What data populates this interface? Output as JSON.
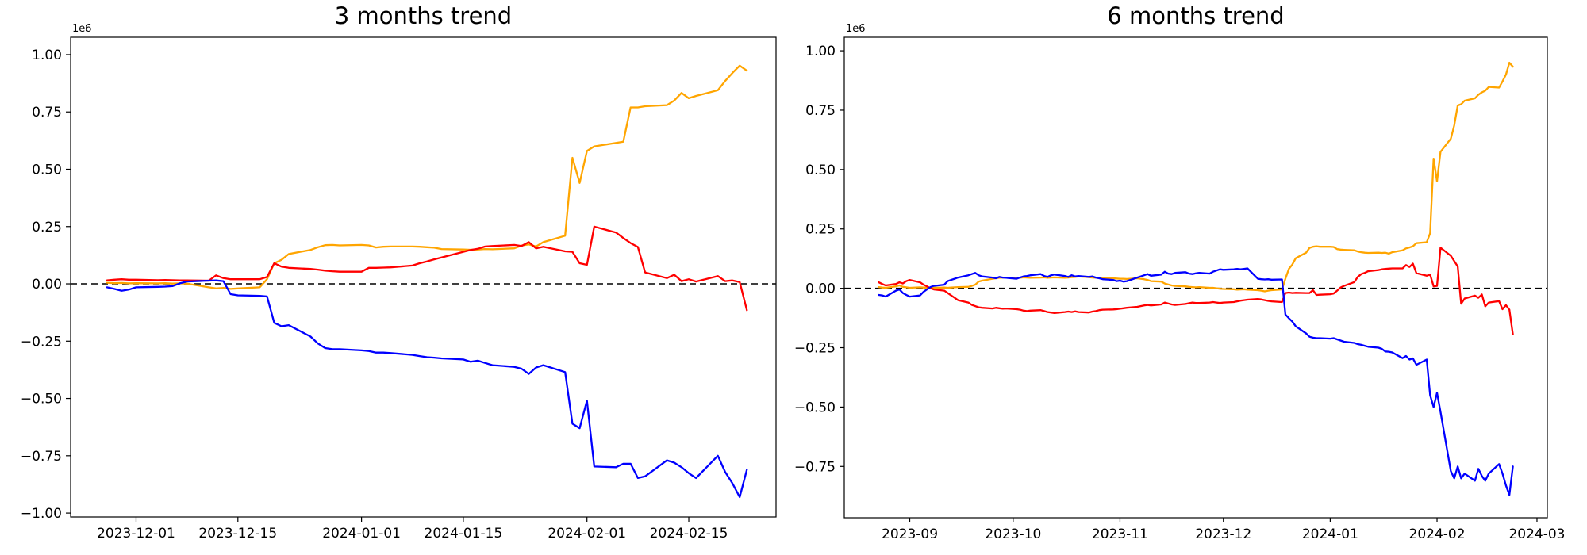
{
  "figure": {
    "background": "#ffffff"
  },
  "chart_data": [
    {
      "type": "line",
      "title": "3 months trend",
      "xlabel": "",
      "ylabel": "",
      "y_unit_offset_label": "1e6",
      "grid": false,
      "legend": "none",
      "zero_line": {
        "show": true,
        "color": "#000000",
        "style": "dashed"
      },
      "xlim": [
        "2023-11-22",
        "2024-02-27"
      ],
      "ylim": [
        -1.017,
        1.076
      ],
      "y_ticks": [
        {
          "value": 1.0,
          "label": "1.00"
        },
        {
          "value": 0.75,
          "label": "0.75"
        },
        {
          "value": 0.5,
          "label": "0.50"
        },
        {
          "value": 0.25,
          "label": "0.25"
        },
        {
          "value": 0.0,
          "label": "0.00"
        },
        {
          "value": -0.25,
          "label": "−0.25"
        },
        {
          "value": -0.5,
          "label": "−0.50"
        },
        {
          "value": -0.75,
          "label": "−0.75"
        },
        {
          "value": -1.0,
          "label": "−1.00"
        }
      ],
      "x_ticks": [
        {
          "date": "2023-12-01",
          "label": "2023-12-01"
        },
        {
          "date": "2023-12-15",
          "label": "2023-12-15"
        },
        {
          "date": "2024-01-01",
          "label": "2024-01-01"
        },
        {
          "date": "2024-01-15",
          "label": "2024-01-15"
        },
        {
          "date": "2024-02-01",
          "label": "2024-02-01"
        },
        {
          "date": "2024-02-15",
          "label": "2024-02-15"
        }
      ],
      "x_dates": [
        "2023-11-27",
        "2023-11-28",
        "2023-11-29",
        "2023-11-30",
        "2023-12-01",
        "2023-12-04",
        "2023-12-05",
        "2023-12-06",
        "2023-12-07",
        "2023-12-08",
        "2023-12-11",
        "2023-12-12",
        "2023-12-13",
        "2023-12-14",
        "2023-12-15",
        "2023-12-18",
        "2023-12-19",
        "2023-12-20",
        "2023-12-21",
        "2023-12-22",
        "2023-12-25",
        "2023-12-26",
        "2023-12-27",
        "2023-12-28",
        "2023-12-29",
        "2024-01-01",
        "2024-01-02",
        "2024-01-03",
        "2024-01-04",
        "2024-01-05",
        "2024-01-08",
        "2024-01-09",
        "2024-01-10",
        "2024-01-11",
        "2024-01-12",
        "2024-01-15",
        "2024-01-16",
        "2024-01-17",
        "2024-01-18",
        "2024-01-19",
        "2024-01-22",
        "2024-01-23",
        "2024-01-24",
        "2024-01-25",
        "2024-01-26",
        "2024-01-29",
        "2024-01-30",
        "2024-01-31",
        "2024-02-01",
        "2024-02-02",
        "2024-02-05",
        "2024-02-06",
        "2024-02-07",
        "2024-02-08",
        "2024-02-09",
        "2024-02-12",
        "2024-02-13",
        "2024-02-14",
        "2024-02-15",
        "2024-02-16",
        "2024-02-19",
        "2024-02-20",
        "2024-02-21",
        "2024-02-22",
        "2024-02-23"
      ],
      "series": [
        {
          "name": "orange",
          "color": "#ffa500",
          "y": [
            0.005,
            0.003,
            0.004,
            0.002,
            0.003,
            0.002,
            0.003,
            0.001,
            0.002,
            0.001,
            -0.015,
            -0.02,
            -0.018,
            -0.022,
            -0.02,
            -0.015,
            0.02,
            0.09,
            0.105,
            0.13,
            0.148,
            0.16,
            0.169,
            0.17,
            0.168,
            0.17,
            0.168,
            0.159,
            0.162,
            0.163,
            0.163,
            0.162,
            0.16,
            0.158,
            0.152,
            0.15,
            0.149,
            0.15,
            0.152,
            0.151,
            0.155,
            0.167,
            0.172,
            0.163,
            0.182,
            0.21,
            0.55,
            0.44,
            0.58,
            0.6,
            0.615,
            0.62,
            0.77,
            0.77,
            0.775,
            0.78,
            0.8,
            0.833,
            0.81,
            0.82,
            0.845,
            0.885,
            0.92,
            0.952,
            0.93
          ]
        },
        {
          "name": "red",
          "color": "#ff0000",
          "y": [
            0.015,
            0.018,
            0.02,
            0.018,
            0.018,
            0.016,
            0.017,
            0.016,
            0.015,
            0.015,
            0.014,
            0.037,
            0.025,
            0.02,
            0.02,
            0.02,
            0.03,
            0.09,
            0.075,
            0.07,
            0.065,
            0.062,
            0.058,
            0.055,
            0.053,
            0.053,
            0.07,
            0.07,
            0.071,
            0.072,
            0.08,
            0.09,
            0.098,
            0.107,
            0.115,
            0.14,
            0.148,
            0.153,
            0.163,
            0.165,
            0.17,
            0.165,
            0.182,
            0.155,
            0.162,
            0.142,
            0.14,
            0.09,
            0.083,
            0.25,
            0.224,
            0.2,
            0.178,
            0.161,
            0.05,
            0.025,
            0.04,
            0.012,
            0.02,
            0.01,
            0.034,
            0.012,
            0.015,
            0.008,
            -0.115
          ]
        },
        {
          "name": "blue",
          "color": "#0000ff",
          "y": [
            -0.015,
            -0.022,
            -0.03,
            -0.025,
            -0.015,
            -0.013,
            -0.012,
            -0.01,
            0.002,
            0.01,
            0.014,
            0.015,
            0.012,
            -0.045,
            -0.05,
            -0.052,
            -0.055,
            -0.17,
            -0.185,
            -0.18,
            -0.23,
            -0.26,
            -0.28,
            -0.285,
            -0.285,
            -0.29,
            -0.293,
            -0.3,
            -0.3,
            -0.302,
            -0.31,
            -0.315,
            -0.32,
            -0.322,
            -0.325,
            -0.33,
            -0.34,
            -0.335,
            -0.345,
            -0.355,
            -0.362,
            -0.37,
            -0.393,
            -0.365,
            -0.355,
            -0.385,
            -0.61,
            -0.63,
            -0.51,
            -0.797,
            -0.8,
            -0.785,
            -0.785,
            -0.847,
            -0.84,
            -0.77,
            -0.78,
            -0.8,
            -0.826,
            -0.847,
            -0.75,
            -0.82,
            -0.87,
            -0.93,
            -0.81
          ]
        }
      ]
    },
    {
      "type": "line",
      "title": "6 months trend",
      "xlabel": "",
      "ylabel": "",
      "y_unit_offset_label": "1e6",
      "grid": false,
      "legend": "none",
      "zero_line": {
        "show": true,
        "color": "#000000",
        "style": "dashed"
      },
      "xlim": [
        "2023-08-13",
        "2024-03-04"
      ],
      "ylim": [
        -0.966,
        1.057
      ],
      "y_ticks": [
        {
          "value": 1.0,
          "label": "1.00"
        },
        {
          "value": 0.75,
          "label": "0.75"
        },
        {
          "value": 0.5,
          "label": "0.50"
        },
        {
          "value": 0.25,
          "label": "0.25"
        },
        {
          "value": 0.0,
          "label": "0.00"
        },
        {
          "value": -0.25,
          "label": "−0.25"
        },
        {
          "value": -0.5,
          "label": "−0.50"
        },
        {
          "value": -0.75,
          "label": "−0.75"
        }
      ],
      "x_ticks": [
        {
          "date": "2023-09-01",
          "label": "2023-09"
        },
        {
          "date": "2023-10-01",
          "label": "2023-10"
        },
        {
          "date": "2023-11-01",
          "label": "2023-11"
        },
        {
          "date": "2023-12-01",
          "label": "2023-12"
        },
        {
          "date": "2024-01-01",
          "label": "2024-01"
        },
        {
          "date": "2024-02-01",
          "label": "2024-02"
        },
        {
          "date": "2024-03-01",
          "label": "2024-03"
        }
      ],
      "x_dates": [
        "2023-08-23",
        "2023-08-24",
        "2023-08-25",
        "2023-08-28",
        "2023-08-29",
        "2023-08-30",
        "2023-08-31",
        "2023-09-01",
        "2023-09-04",
        "2023-09-05",
        "2023-09-06",
        "2023-09-07",
        "2023-09-08",
        "2023-09-11",
        "2023-09-12",
        "2023-09-13",
        "2023-09-14",
        "2023-09-15",
        "2023-09-18",
        "2023-09-19",
        "2023-09-20",
        "2023-09-21",
        "2023-09-22",
        "2023-09-25",
        "2023-09-26",
        "2023-09-27",
        "2023-09-28",
        "2023-09-29",
        "2023-10-02",
        "2023-10-03",
        "2023-10-04",
        "2023-10-05",
        "2023-10-06",
        "2023-10-09",
        "2023-10-10",
        "2023-10-11",
        "2023-10-12",
        "2023-10-13",
        "2023-10-16",
        "2023-10-17",
        "2023-10-18",
        "2023-10-19",
        "2023-10-20",
        "2023-10-23",
        "2023-10-24",
        "2023-10-25",
        "2023-10-26",
        "2023-10-27",
        "2023-10-30",
        "2023-10-31",
        "2023-11-01",
        "2023-11-02",
        "2023-11-03",
        "2023-11-06",
        "2023-11-07",
        "2023-11-08",
        "2023-11-09",
        "2023-11-10",
        "2023-11-13",
        "2023-11-14",
        "2023-11-15",
        "2023-11-16",
        "2023-11-17",
        "2023-11-20",
        "2023-11-21",
        "2023-11-22",
        "2023-11-23",
        "2023-11-24",
        "2023-11-27",
        "2023-11-28",
        "2023-11-29",
        "2023-11-30",
        "2023-12-01",
        "2023-12-04",
        "2023-12-05",
        "2023-12-06",
        "2023-12-07",
        "2023-12-08",
        "2023-12-11",
        "2023-12-12",
        "2023-12-13",
        "2023-12-14",
        "2023-12-15",
        "2023-12-18",
        "2023-12-19",
        "2023-12-20",
        "2023-12-21",
        "2023-12-22",
        "2023-12-25",
        "2023-12-26",
        "2023-12-27",
        "2023-12-28",
        "2023-12-29",
        "2024-01-01",
        "2024-01-02",
        "2024-01-03",
        "2024-01-04",
        "2024-01-05",
        "2024-01-08",
        "2024-01-09",
        "2024-01-10",
        "2024-01-11",
        "2024-01-12",
        "2024-01-15",
        "2024-01-16",
        "2024-01-17",
        "2024-01-18",
        "2024-01-19",
        "2024-01-22",
        "2024-01-23",
        "2024-01-24",
        "2024-01-25",
        "2024-01-26",
        "2024-01-29",
        "2024-01-30",
        "2024-01-31",
        "2024-02-01",
        "2024-02-02",
        "2024-02-05",
        "2024-02-06",
        "2024-02-07",
        "2024-02-08",
        "2024-02-09",
        "2024-02-12",
        "2024-02-13",
        "2024-02-14",
        "2024-02-15",
        "2024-02-16",
        "2024-02-19",
        "2024-02-20",
        "2024-02-21",
        "2024-02-22",
        "2024-02-23"
      ],
      "series": [
        {
          "name": "orange",
          "color": "#ffa500",
          "y": [
            0.005,
            0.003,
            0.002,
            0.008,
            0.012,
            0.006,
            0.004,
            0.002,
            0.004,
            0.003,
            0.002,
            0.001,
            0.002,
            0.003,
            0.002,
            0.003,
            0.004,
            0.005,
            0.006,
            0.01,
            0.015,
            0.028,
            0.032,
            0.04,
            0.042,
            0.044,
            0.045,
            0.044,
            0.045,
            0.044,
            0.046,
            0.045,
            0.044,
            0.045,
            0.046,
            0.044,
            0.045,
            0.046,
            0.044,
            0.045,
            0.047,
            0.048,
            0.05,
            0.047,
            0.045,
            0.044,
            0.043,
            0.042,
            0.042,
            0.041,
            0.04,
            0.04,
            0.039,
            0.042,
            0.04,
            0.038,
            0.035,
            0.03,
            0.028,
            0.02,
            0.016,
            0.012,
            0.01,
            0.008,
            0.006,
            0.005,
            0.004,
            0.005,
            0.002,
            0.002,
            0.0,
            -0.002,
            -0.003,
            -0.004,
            -0.006,
            -0.005,
            -0.004,
            -0.006,
            -0.008,
            -0.01,
            -0.013,
            -0.01,
            -0.008,
            -0.005,
            0.04,
            0.082,
            0.1,
            0.127,
            0.15,
            0.17,
            0.175,
            0.177,
            0.175,
            0.175,
            0.174,
            0.165,
            0.163,
            0.162,
            0.16,
            0.155,
            0.152,
            0.15,
            0.149,
            0.15,
            0.149,
            0.15,
            0.146,
            0.152,
            0.16,
            0.168,
            0.172,
            0.177,
            0.19,
            0.194,
            0.232,
            0.546,
            0.45,
            0.575,
            0.63,
            0.686,
            0.77,
            0.775,
            0.79,
            0.8,
            0.815,
            0.825,
            0.832,
            0.848,
            0.845,
            0.871,
            0.9,
            0.95,
            0.933
          ]
        },
        {
          "name": "red",
          "color": "#ff0000",
          "y": [
            0.025,
            0.018,
            0.012,
            0.018,
            0.025,
            0.02,
            0.03,
            0.035,
            0.025,
            0.015,
            0.008,
            0.0,
            -0.005,
            -0.01,
            -0.02,
            -0.03,
            -0.04,
            -0.05,
            -0.06,
            -0.07,
            -0.075,
            -0.08,
            -0.082,
            -0.085,
            -0.082,
            -0.084,
            -0.086,
            -0.085,
            -0.088,
            -0.09,
            -0.094,
            -0.096,
            -0.094,
            -0.092,
            -0.096,
            -0.1,
            -0.102,
            -0.104,
            -0.1,
            -0.098,
            -0.1,
            -0.097,
            -0.1,
            -0.102,
            -0.098,
            -0.096,
            -0.092,
            -0.09,
            -0.089,
            -0.088,
            -0.086,
            -0.084,
            -0.082,
            -0.078,
            -0.075,
            -0.072,
            -0.07,
            -0.072,
            -0.068,
            -0.06,
            -0.064,
            -0.068,
            -0.07,
            -0.066,
            -0.063,
            -0.06,
            -0.062,
            -0.062,
            -0.06,
            -0.058,
            -0.06,
            -0.062,
            -0.06,
            -0.058,
            -0.055,
            -0.052,
            -0.05,
            -0.048,
            -0.045,
            -0.047,
            -0.05,
            -0.053,
            -0.055,
            -0.058,
            -0.02,
            -0.018,
            -0.02,
            -0.019,
            -0.02,
            -0.02,
            -0.008,
            -0.028,
            -0.027,
            -0.025,
            -0.022,
            -0.01,
            0.003,
            0.01,
            0.026,
            0.048,
            0.06,
            0.065,
            0.072,
            0.077,
            0.08,
            0.082,
            0.083,
            0.084,
            0.084,
            0.098,
            0.09,
            0.104,
            0.064,
            0.053,
            0.058,
            0.008,
            0.01,
            0.171,
            0.137,
            0.115,
            0.092,
            -0.065,
            -0.043,
            -0.031,
            -0.04,
            -0.026,
            -0.076,
            -0.06,
            -0.054,
            -0.088,
            -0.071,
            -0.09,
            -0.194
          ]
        },
        {
          "name": "blue",
          "color": "#0000ff",
          "y": [
            -0.028,
            -0.03,
            -0.035,
            -0.01,
            -0.005,
            -0.02,
            -0.028,
            -0.035,
            -0.03,
            -0.015,
            -0.005,
            0.005,
            0.01,
            0.015,
            0.03,
            0.035,
            0.04,
            0.045,
            0.055,
            0.06,
            0.065,
            0.055,
            0.05,
            0.045,
            0.042,
            0.048,
            0.045,
            0.044,
            0.04,
            0.045,
            0.05,
            0.052,
            0.055,
            0.06,
            0.052,
            0.048,
            0.055,
            0.058,
            0.052,
            0.048,
            0.055,
            0.05,
            0.052,
            0.048,
            0.05,
            0.045,
            0.042,
            0.038,
            0.035,
            0.03,
            0.032,
            0.028,
            0.03,
            0.045,
            0.05,
            0.055,
            0.06,
            0.053,
            0.058,
            0.07,
            0.062,
            0.06,
            0.065,
            0.068,
            0.062,
            0.06,
            0.063,
            0.065,
            0.062,
            0.07,
            0.075,
            0.08,
            0.078,
            0.08,
            0.082,
            0.08,
            0.082,
            0.084,
            0.04,
            0.038,
            0.037,
            0.038,
            0.036,
            0.037,
            -0.11,
            -0.126,
            -0.14,
            -0.16,
            -0.19,
            -0.204,
            -0.208,
            -0.21,
            -0.21,
            -0.212,
            -0.21,
            -0.215,
            -0.22,
            -0.225,
            -0.23,
            -0.235,
            -0.238,
            -0.242,
            -0.246,
            -0.25,
            -0.255,
            -0.266,
            -0.267,
            -0.27,
            -0.294,
            -0.285,
            -0.3,
            -0.295,
            -0.322,
            -0.3,
            -0.45,
            -0.5,
            -0.44,
            -0.52,
            -0.77,
            -0.8,
            -0.75,
            -0.8,
            -0.78,
            -0.81,
            -0.76,
            -0.79,
            -0.81,
            -0.78,
            -0.74,
            -0.78,
            -0.83,
            -0.87,
            -0.75
          ]
        }
      ]
    }
  ]
}
